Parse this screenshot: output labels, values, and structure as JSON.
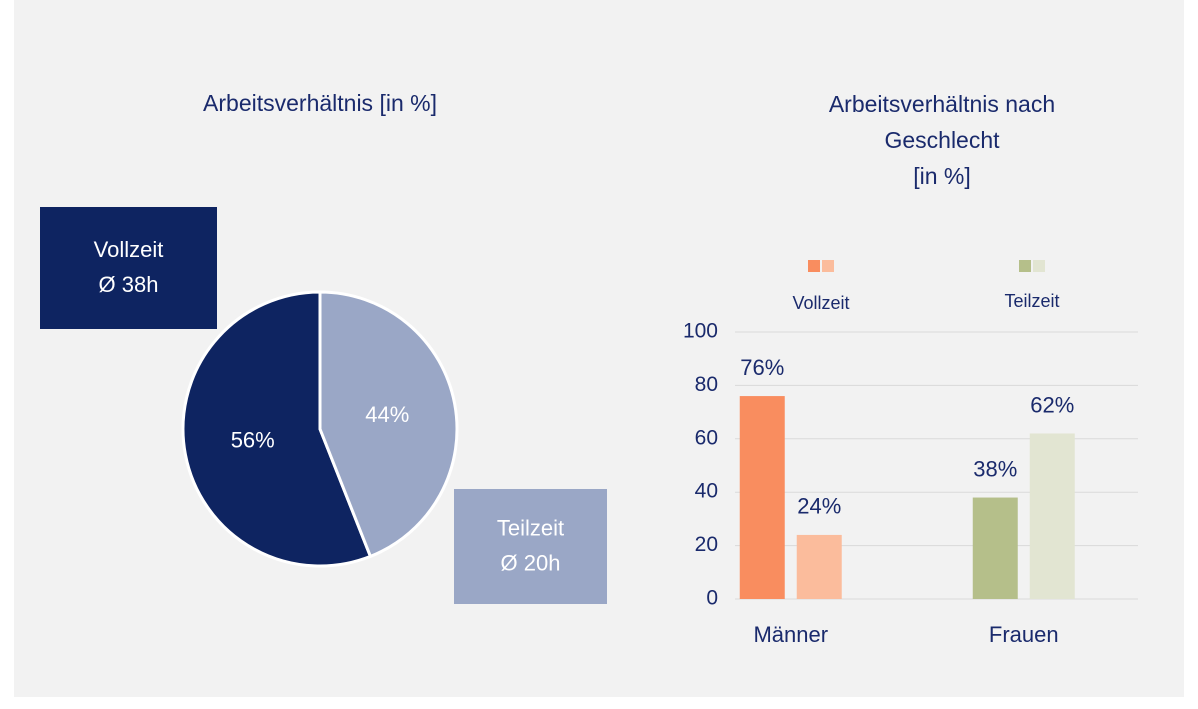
{
  "chart_data": [
    {
      "type": "pie",
      "title": "Arbeitsverhältnis [in %]",
      "categories": [
        "Vollzeit",
        "Teilzeit"
      ],
      "annotations": [
        "Ø 38h",
        "Ø 20h"
      ],
      "values": [
        56,
        44
      ],
      "value_labels": [
        "56%",
        "44%"
      ],
      "colors": [
        "#0e2461",
        "#9aa7c6"
      ]
    },
    {
      "type": "bar",
      "title": [
        "Arbeitsverhältnis nach",
        "Geschlecht",
        "[in %]"
      ],
      "categories": [
        "Männer",
        "Frauen"
      ],
      "series": [
        {
          "name": "Vollzeit",
          "colors": [
            "#f98d5f",
            "#b5bf8a"
          ],
          "values": [
            76,
            38
          ],
          "value_labels": [
            "76%",
            "38%"
          ]
        },
        {
          "name": "Teilzeit",
          "colors": [
            "#fbbc9c",
            "#e2e5d2"
          ],
          "values": [
            24,
            62
          ],
          "value_labels": [
            "24%",
            "62%"
          ]
        }
      ],
      "ylim": [
        0,
        100
      ],
      "yticks": [
        0,
        20,
        40,
        60,
        80,
        100
      ],
      "grid": true
    }
  ]
}
